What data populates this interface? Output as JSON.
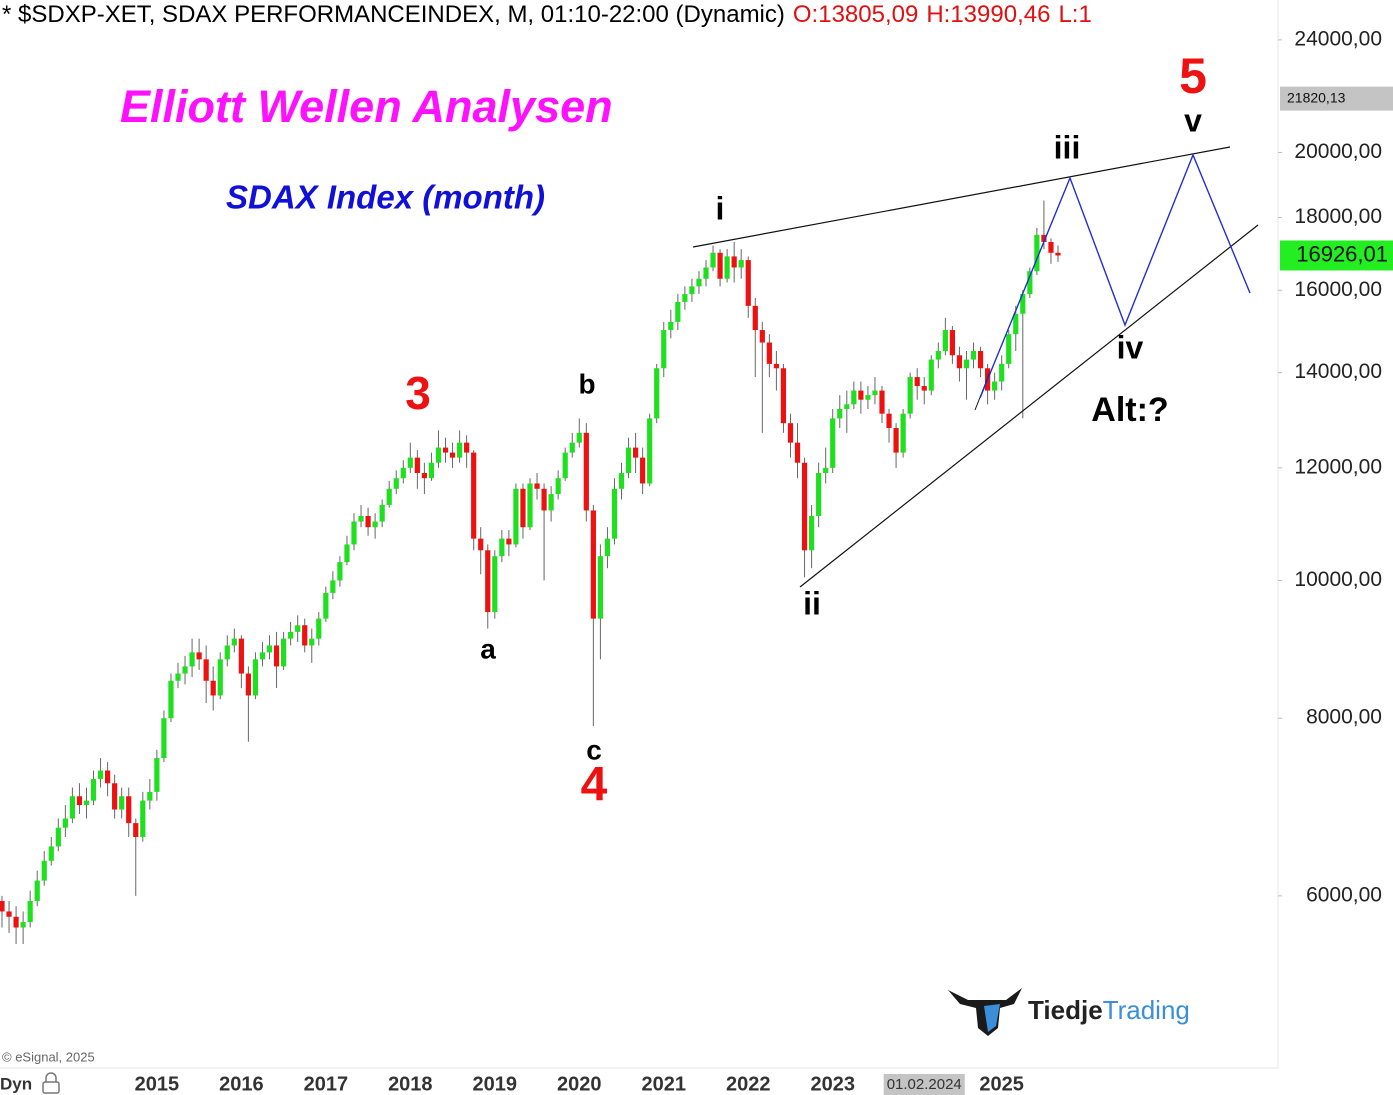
{
  "header": {
    "symbol": "* $SDXP-XET, SDAX PERFORMANCEINDEX, M, 01:10-22:00 (Dynamic)",
    "ohlc": [
      "O:13805,09",
      "H:13990,46",
      "L:1"
    ]
  },
  "chart_data": {
    "type": "candlestick",
    "title": "Elliott Wellen Analysen",
    "subtitle": "SDAX Index (month)",
    "categories": [
      null,
      null,
      null,
      null,
      null,
      null,
      null,
      null,
      null,
      null,
      null,
      null,
      null,
      null,
      null,
      null,
      null,
      null,
      null,
      null,
      null,
      null,
      "2015",
      null,
      null,
      null,
      null,
      null,
      null,
      null,
      null,
      null,
      null,
      null,
      "2016",
      null,
      null,
      null,
      null,
      null,
      null,
      null,
      null,
      null,
      null,
      null,
      "2017",
      null,
      null,
      null,
      null,
      null,
      null,
      null,
      null,
      null,
      null,
      null,
      "2018",
      null,
      null,
      null,
      null,
      null,
      null,
      null,
      null,
      null,
      null,
      null,
      "2019",
      null,
      null,
      null,
      null,
      null,
      null,
      null,
      null,
      null,
      null,
      null,
      "2020",
      null,
      null,
      null,
      null,
      null,
      null,
      null,
      null,
      null,
      null,
      null,
      "2021",
      null,
      null,
      null,
      null,
      null,
      null,
      null,
      null,
      null,
      null,
      null,
      "2022",
      null,
      null,
      null,
      null,
      null,
      null,
      null,
      null,
      null,
      null,
      null,
      "2023",
      null,
      null,
      null,
      null,
      null,
      null,
      null,
      null,
      null,
      null,
      null,
      null,
      "01.02.2024",
      null,
      null,
      null,
      null,
      null,
      null,
      null,
      null,
      null,
      null,
      "2025",
      null,
      null,
      null,
      null,
      null,
      null,
      null,
      null
    ],
    "open": [
      5950,
      5850,
      5800,
      5700,
      5750,
      5950,
      6150,
      6350,
      6500,
      6700,
      6800,
      7050,
      6950,
      7000,
      7250,
      7350,
      7200,
      6900,
      7050,
      6750,
      6600,
      7000,
      7100,
      7500,
      8000,
      8500,
      8600,
      8700,
      8900,
      8800,
      8500,
      8300,
      8800,
      9000,
      9100,
      8600,
      8300,
      8800,
      8900,
      9000,
      8700,
      9100,
      9200,
      9300,
      9000,
      9100,
      9400,
      9800,
      10000,
      10300,
      10600,
      11000,
      11100,
      10900,
      11000,
      11300,
      11600,
      11800,
      12000,
      12200,
      11900,
      11800,
      12100,
      12400,
      12300,
      12200,
      12500,
      12300,
      10700,
      10500,
      9500,
      10400,
      10700,
      10600,
      11600,
      10900,
      11700,
      11600,
      11200,
      11500,
      11800,
      12300,
      12500,
      12700,
      11200,
      9400,
      10400,
      10700,
      11600,
      11900,
      12400,
      12200,
      11700,
      13000,
      14100,
      15000,
      15200,
      15700,
      15900,
      16100,
      16300,
      16600,
      17000,
      16300,
      16900,
      16600,
      16800,
      15600,
      15000,
      14700,
      14200,
      14100,
      12900,
      12500,
      12100,
      10500,
      11100,
      11900,
      12000,
      13000,
      13200,
      13300,
      13600,
      13400,
      13500,
      13600,
      13100,
      12800,
      12300,
      13100,
      13900,
      13700,
      13600,
      14300,
      14500,
      15000,
      14400,
      14100,
      14300,
      14500,
      14100,
      13600,
      13800,
      14200,
      14900,
      15400,
      15900,
      16500,
      17500,
      17300,
      17000
    ],
    "high": [
      6000,
      5950,
      5900,
      5850,
      6050,
      6250,
      6450,
      6600,
      6800,
      6950,
      7150,
      7200,
      7150,
      7350,
      7500,
      7450,
      7300,
      7150,
      7150,
      6800,
      7100,
      7250,
      7600,
      8100,
      8600,
      8750,
      8850,
      9100,
      9100,
      9000,
      8700,
      8900,
      9150,
      9250,
      9150,
      8700,
      8900,
      9050,
      9150,
      9200,
      9200,
      9350,
      9450,
      9400,
      9250,
      9500,
      9900,
      10150,
      10400,
      10750,
      11150,
      11300,
      11250,
      11150,
      11400,
      11750,
      11950,
      12150,
      12500,
      12350,
      12100,
      12300,
      12750,
      12600,
      12500,
      12750,
      12650,
      12350,
      10900,
      10600,
      10500,
      10850,
      10850,
      11700,
      11700,
      11800,
      11900,
      11700,
      11650,
      11950,
      12400,
      12700,
      13000,
      12900,
      11300,
      10600,
      10900,
      11800,
      12100,
      12600,
      12700,
      12400,
      13100,
      14200,
      15200,
      15500,
      15900,
      16100,
      16300,
      16500,
      16800,
      17200,
      17100,
      17100,
      17300,
      17100,
      16900,
      15800,
      15200,
      14900,
      14500,
      14200,
      13100,
      12900,
      12200,
      11300,
      12100,
      12400,
      13200,
      13500,
      13600,
      13800,
      13800,
      13700,
      13900,
      13700,
      13200,
      12900,
      13200,
      14000,
      14100,
      13900,
      14400,
      14700,
      15300,
      15100,
      14600,
      14500,
      14700,
      14600,
      14200,
      14000,
      14400,
      15000,
      15600,
      16000,
      16600,
      17700,
      18500,
      17400,
      17200
    ],
    "low": [
      5700,
      5650,
      5550,
      5550,
      5700,
      5900,
      6100,
      6300,
      6450,
      6600,
      6750,
      6850,
      6800,
      6950,
      7150,
      7050,
      6800,
      6800,
      6600,
      6000,
      6550,
      6900,
      7000,
      7450,
      7950,
      8400,
      8450,
      8550,
      8650,
      8200,
      8100,
      8250,
      8700,
      8900,
      8400,
      7700,
      8250,
      8700,
      8800,
      8400,
      8650,
      9000,
      9050,
      8900,
      8750,
      9000,
      9350,
      9700,
      9900,
      10250,
      10500,
      10900,
      10750,
      10700,
      10900,
      11250,
      11500,
      11700,
      11900,
      11600,
      11500,
      11750,
      12000,
      12100,
      12000,
      12100,
      12000,
      10500,
      10100,
      9250,
      9400,
      10300,
      10400,
      10550,
      10700,
      10850,
      11400,
      10000,
      11000,
      11400,
      11750,
      12200,
      12400,
      11000,
      7900,
      8800,
      10200,
      10600,
      11400,
      11800,
      11900,
      11500,
      11650,
      12900,
      13900,
      14800,
      15000,
      15500,
      15700,
      15900,
      16100,
      16500,
      16100,
      16200,
      16200,
      16300,
      15300,
      13900,
      12700,
      13900,
      13600,
      12700,
      12200,
      11800,
      10050,
      10200,
      10900,
      11700,
      11900,
      12800,
      12700,
      13200,
      13100,
      13200,
      13300,
      12900,
      12500,
      12000,
      12200,
      13000,
      13400,
      13300,
      13500,
      14100,
      14400,
      14200,
      13800,
      13400,
      14100,
      13900,
      13300,
      13400,
      13600,
      14100,
      14500,
      13000,
      15800,
      16400,
      17100,
      16700,
      16750
    ],
    "close": [
      5850,
      5800,
      5700,
      5750,
      5950,
      6150,
      6350,
      6500,
      6700,
      6800,
      7050,
      6950,
      7000,
      7250,
      7350,
      7200,
      6900,
      7050,
      6750,
      6600,
      7000,
      7100,
      7500,
      8000,
      8500,
      8600,
      8700,
      8900,
      8800,
      8500,
      8300,
      8800,
      9000,
      9100,
      8600,
      8300,
      8800,
      8900,
      9000,
      8700,
      9100,
      9200,
      9300,
      9000,
      9100,
      9400,
      9800,
      10000,
      10300,
      10600,
      11000,
      11100,
      10900,
      11000,
      11300,
      11600,
      11800,
      12000,
      12200,
      11900,
      11800,
      12100,
      12400,
      12300,
      12200,
      12500,
      12300,
      10700,
      10500,
      9500,
      10400,
      10700,
      10600,
      11600,
      10900,
      11700,
      11600,
      11200,
      11500,
      11800,
      12300,
      12500,
      12700,
      11200,
      9400,
      10400,
      10700,
      11600,
      11900,
      12400,
      12200,
      11700,
      13000,
      14100,
      15000,
      15200,
      15700,
      15900,
      16100,
      16300,
      16600,
      17000,
      16300,
      16900,
      16600,
      16800,
      15600,
      15000,
      14700,
      14200,
      14100,
      12900,
      12500,
      12100,
      10500,
      11100,
      11900,
      12000,
      13000,
      13200,
      13300,
      13600,
      13400,
      13500,
      13600,
      13100,
      12800,
      12300,
      13100,
      13900,
      13700,
      13600,
      14300,
      14500,
      15000,
      14400,
      14100,
      14300,
      14500,
      14100,
      13600,
      13800,
      14200,
      14900,
      15400,
      15900,
      16500,
      17500,
      17300,
      17000,
      16926.01
    ],
    "up_color": "#1fe01f",
    "down_color": "#ee1111",
    "wick_color": "#666666",
    "log_scale": true,
    "ylim": [
      4540,
      25600
    ],
    "yticks": [
      {
        "value": 6000,
        "label": "6000,00"
      },
      {
        "value": 8000,
        "label": "8000,00"
      },
      {
        "value": 10000,
        "label": "10000,00"
      },
      {
        "value": 12000,
        "label": "12000,00"
      },
      {
        "value": 14000,
        "label": "14000,00"
      },
      {
        "value": 16000,
        "label": "16000,00"
      },
      {
        "value": 18000,
        "label": "18000,00"
      },
      {
        "value": 20000,
        "label": "20000,00"
      },
      {
        "value": 24000,
        "label": "24000,00"
      }
    ],
    "price_tags": [
      {
        "value": 21820.13,
        "label": "21820,13",
        "color": "#c4c4c4"
      },
      {
        "value": 16926.01,
        "label": "16926,01",
        "color": "#22ee22"
      }
    ],
    "annotations": [
      "3",
      "a",
      "b",
      "c",
      "4",
      "i",
      "ii",
      "iii",
      "iv",
      "v",
      "5",
      "Alt:?"
    ]
  },
  "footer": {
    "copyright": "© eSignal, 2025",
    "mode": "Dyn",
    "logo": [
      "Tiedje",
      "Trading"
    ]
  }
}
